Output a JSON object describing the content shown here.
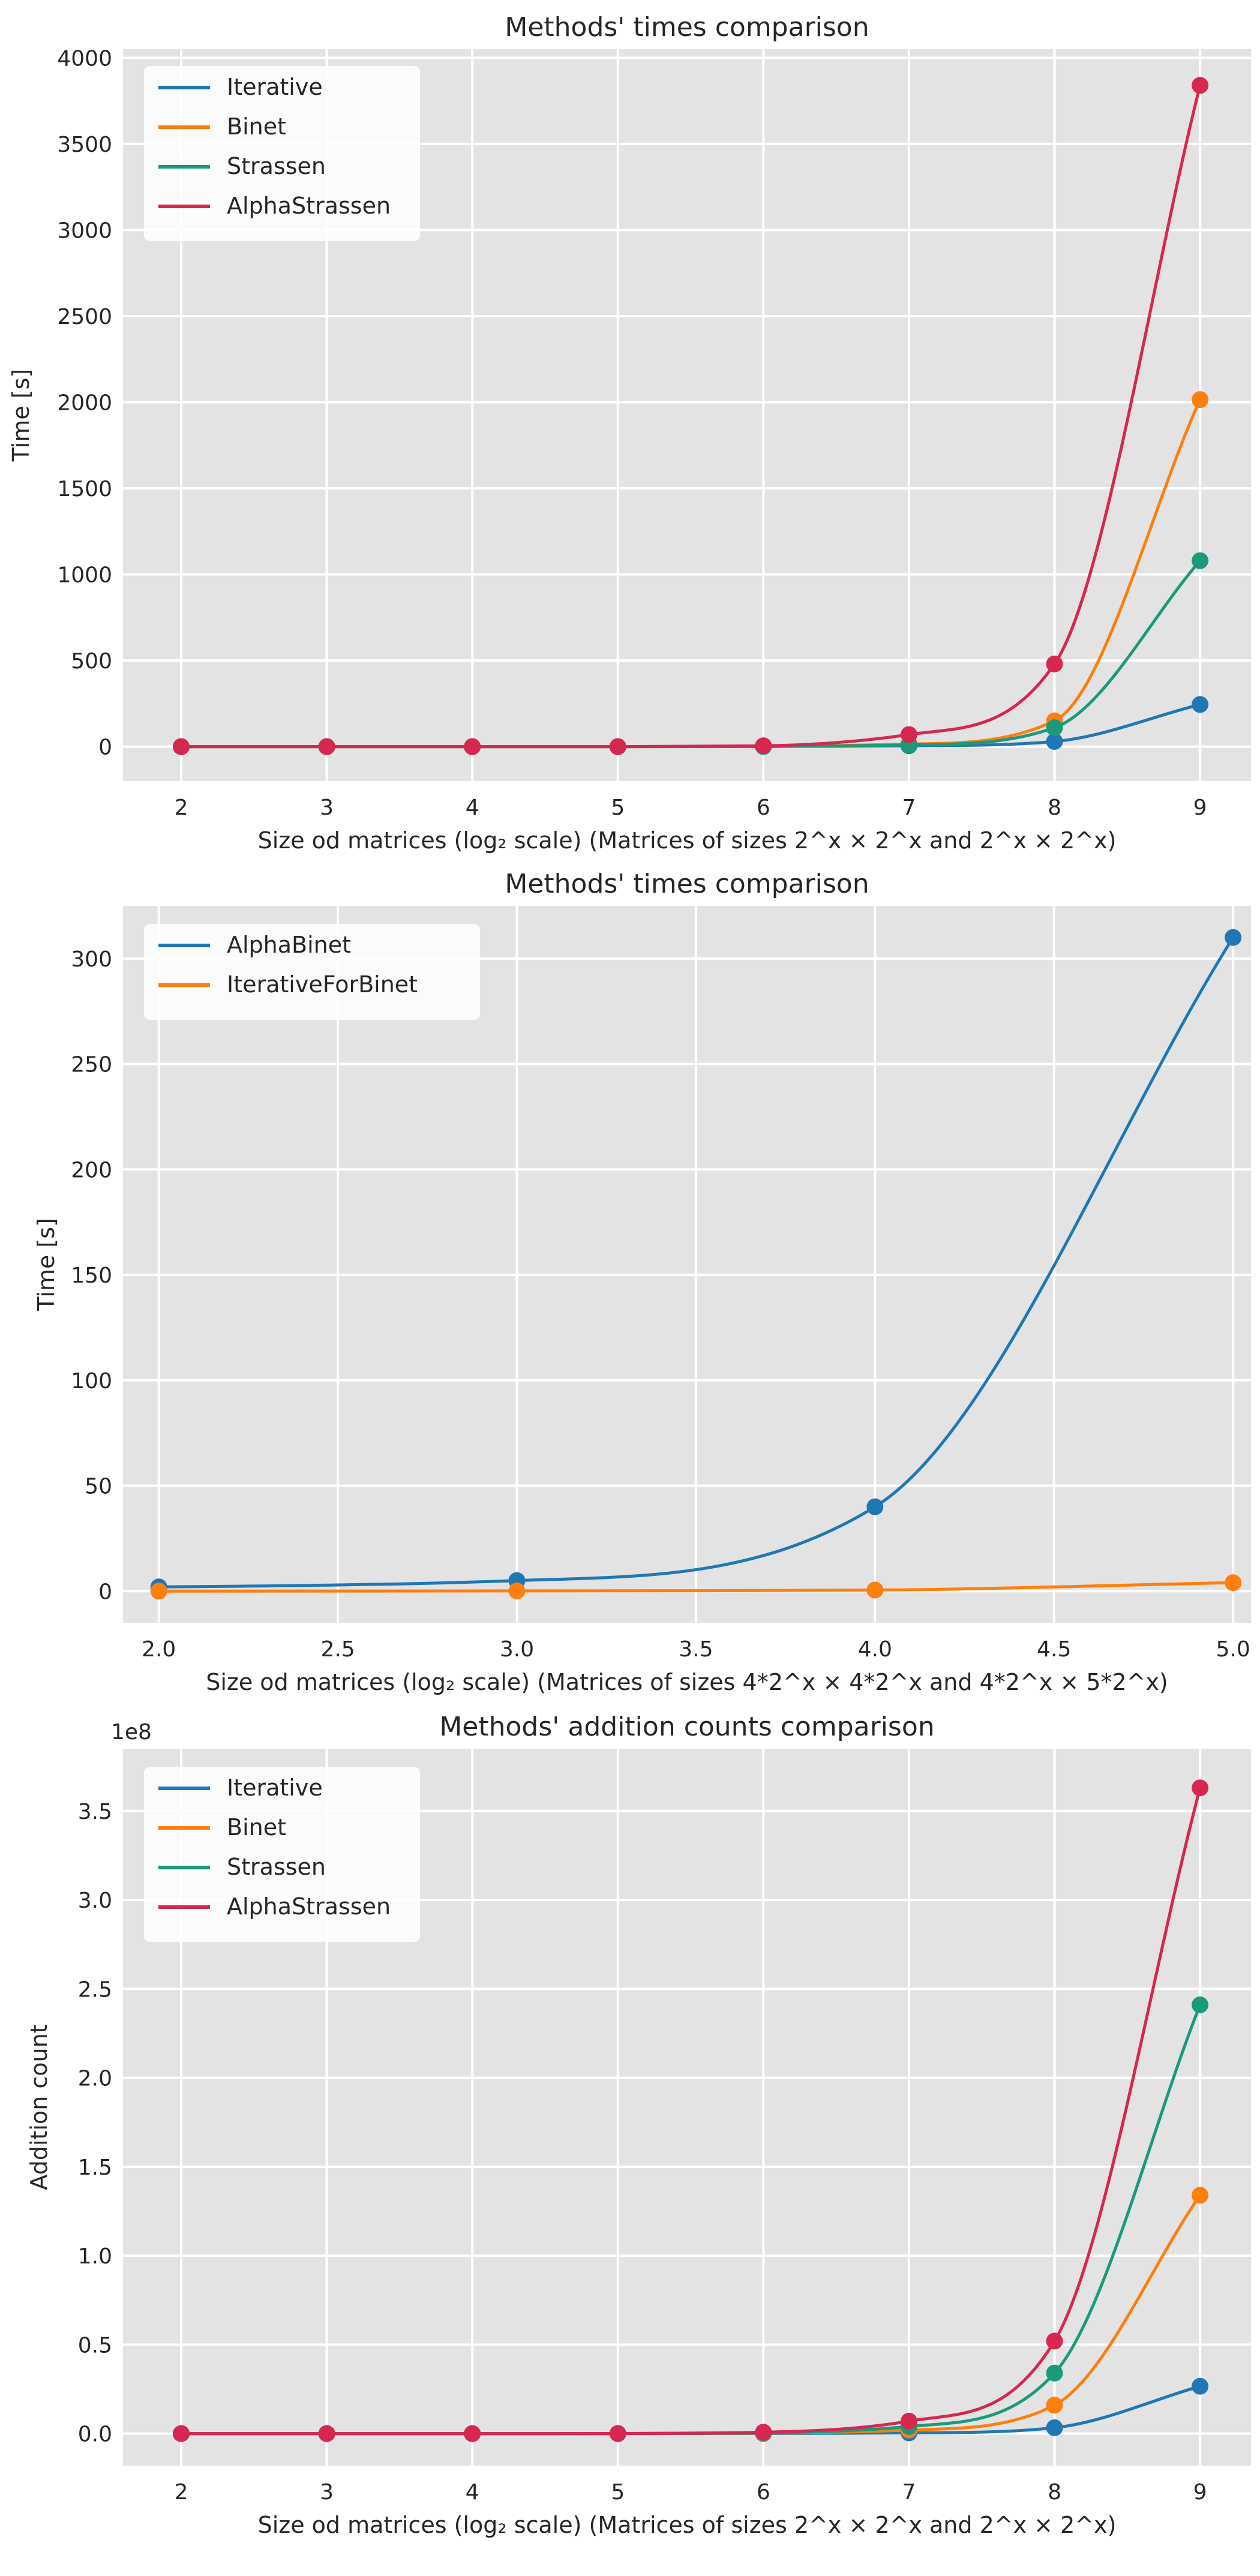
{
  "chart_data": [
    {
      "type": "line",
      "title": "Methods' times comparison",
      "xlabel": "Size od matrices (log₂ scale) (Matrices of sizes 2^x × 2^x and 2^x × 2^x)",
      "ylabel": "Time [s]",
      "offset_text": "",
      "xlim": [
        1.6,
        9.35
      ],
      "ylim": [
        -200,
        4050
      ],
      "x": [
        2,
        3,
        4,
        5,
        6,
        7,
        8,
        9
      ],
      "xticks": [
        2,
        3,
        4,
        5,
        6,
        7,
        8,
        9
      ],
      "xtick_labels": [
        "2",
        "3",
        "4",
        "5",
        "6",
        "7",
        "8",
        "9"
      ],
      "yticks": [
        0,
        500,
        1000,
        1500,
        2000,
        2500,
        3000,
        3500,
        4000
      ],
      "ytick_labels": [
        "0",
        "500",
        "1000",
        "1500",
        "2000",
        "2500",
        "3000",
        "3500",
        "4000"
      ],
      "legend": "top-left",
      "grid": true,
      "series": [
        {
          "name": "Iterative",
          "color": "#1f77b4",
          "values": [
            0,
            0,
            0,
            0,
            1,
            5,
            30,
            245
          ]
        },
        {
          "name": "Binet",
          "color": "#ff7f0e",
          "values": [
            0,
            0,
            0,
            0,
            1,
            15,
            150,
            2015
          ]
        },
        {
          "name": "Strassen",
          "color": "#1a9a7a",
          "values": [
            0,
            0,
            0,
            0,
            1,
            10,
            110,
            1080
          ]
        },
        {
          "name": "AlphaStrassen",
          "color": "#d62750",
          "values": [
            0,
            0,
            0,
            0,
            5,
            70,
            480,
            3840
          ]
        }
      ]
    },
    {
      "type": "line",
      "title": "Methods' times comparison",
      "xlabel": "Size od matrices (log₂ scale) (Matrices of sizes 4*2^x × 4*2^x and 4*2^x × 5*2^x)",
      "ylabel": "Time [s]",
      "offset_text": "",
      "xlim": [
        1.9,
        5.05
      ],
      "ylim": [
        -15,
        325
      ],
      "x": [
        2.0,
        3.0,
        4.0,
        5.0
      ],
      "xticks": [
        2.0,
        2.5,
        3.0,
        3.5,
        4.0,
        4.5,
        5.0
      ],
      "xtick_labels": [
        "2.0",
        "2.5",
        "3.0",
        "3.5",
        "4.0",
        "4.5",
        "5.0"
      ],
      "yticks": [
        0,
        50,
        100,
        150,
        200,
        250,
        300
      ],
      "ytick_labels": [
        "0",
        "50",
        "100",
        "150",
        "200",
        "250",
        "300"
      ],
      "legend": "top-left",
      "grid": true,
      "series": [
        {
          "name": "AlphaBinet",
          "color": "#1f77b4",
          "values": [
            2,
            5,
            40,
            310
          ]
        },
        {
          "name": "IterativeForBinet",
          "color": "#ff7f0e",
          "values": [
            0,
            0.1,
            0.5,
            4
          ]
        }
      ]
    },
    {
      "type": "line",
      "title": "Methods' addition counts comparison",
      "xlabel": "Size od matrices (log₂ scale) (Matrices of sizes 2^x × 2^x and 2^x × 2^x)",
      "ylabel": "Addition count",
      "offset_text": "1e8",
      "xlim": [
        1.6,
        9.35
      ],
      "ylim": [
        -0.18,
        3.85
      ],
      "x": [
        2,
        3,
        4,
        5,
        6,
        7,
        8,
        9
      ],
      "xticks": [
        2,
        3,
        4,
        5,
        6,
        7,
        8,
        9
      ],
      "xtick_labels": [
        "2",
        "3",
        "4",
        "5",
        "6",
        "7",
        "8",
        "9"
      ],
      "yticks": [
        0.0,
        0.5,
        1.0,
        1.5,
        2.0,
        2.5,
        3.0,
        3.5
      ],
      "ytick_labels": [
        "0.0",
        "0.5",
        "1.0",
        "1.5",
        "2.0",
        "2.5",
        "3.0",
        "3.5"
      ],
      "legend": "top-left",
      "grid": true,
      "series": [
        {
          "name": "Iterative",
          "color": "#1f77b4",
          "values": [
            0,
            0,
            0,
            0.0001,
            0.0005,
            0.004,
            0.033,
            0.266
          ]
        },
        {
          "name": "Binet",
          "color": "#ff7f0e",
          "values": [
            0,
            0,
            0,
            0.0001,
            0.003,
            0.02,
            0.16,
            1.34
          ]
        },
        {
          "name": "Strassen",
          "color": "#1a9a7a",
          "values": [
            0,
            0,
            0,
            0.0002,
            0.005,
            0.04,
            0.34,
            2.41
          ]
        },
        {
          "name": "AlphaStrassen",
          "color": "#d62750",
          "values": [
            0,
            0,
            0,
            0.0003,
            0.008,
            0.07,
            0.52,
            3.63
          ]
        }
      ]
    }
  ]
}
